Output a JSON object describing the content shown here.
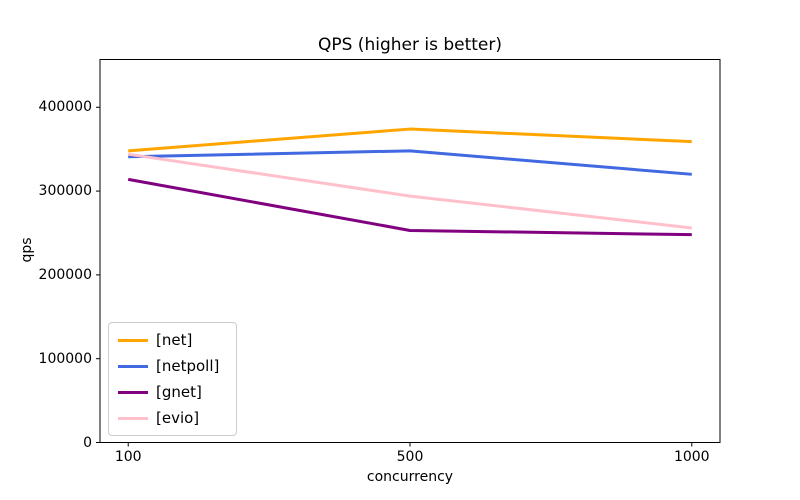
{
  "chart_data": {
    "type": "line",
    "title": "QPS (higher is better)",
    "xlabel": "concurrency",
    "ylabel": "qps",
    "categories": [
      "100",
      "500",
      "1000"
    ],
    "series": [
      {
        "name": "[net]",
        "color": "#ffa500",
        "values": [
          348000,
          374000,
          359000
        ]
      },
      {
        "name": "[netpoll]",
        "color": "#4169e1",
        "values": [
          341000,
          348000,
          320000
        ]
      },
      {
        "name": "[gnet]",
        "color": "#800080",
        "values": [
          314000,
          253000,
          248000
        ]
      },
      {
        "name": "[evio]",
        "color": "#ffc0cb",
        "values": [
          344000,
          294000,
          256000
        ]
      }
    ],
    "yticks": [
      0,
      100000,
      200000,
      300000,
      400000
    ],
    "yticklabels": [
      "0",
      "100000",
      "200000",
      "300000",
      "400000"
    ],
    "ylim": [
      0,
      457000
    ],
    "grid": false,
    "legend_position": "lower left",
    "axis_color": "#000000",
    "background_color": "#ffffff"
  }
}
